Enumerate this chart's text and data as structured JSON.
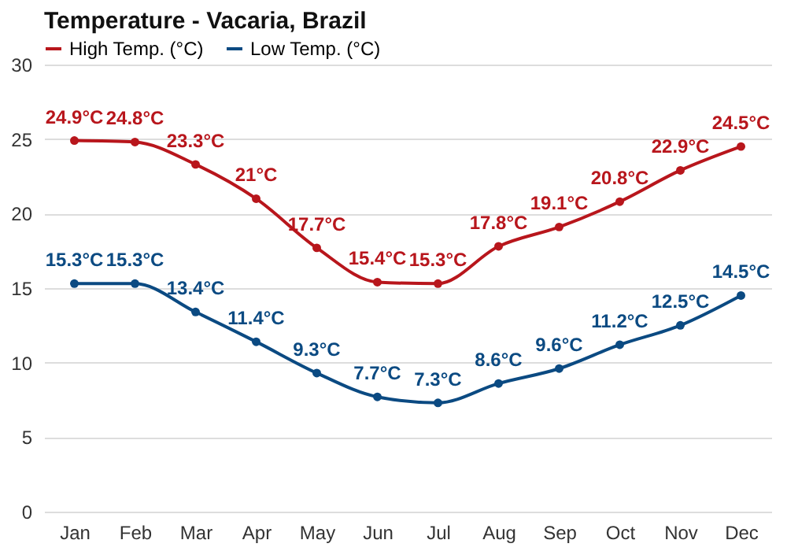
{
  "chart_data": {
    "type": "line",
    "title": "Temperature - Vacaria, Brazil",
    "categories": [
      "Jan",
      "Feb",
      "Mar",
      "Apr",
      "May",
      "Jun",
      "Jul",
      "Aug",
      "Sep",
      "Oct",
      "Nov",
      "Dec"
    ],
    "series": [
      {
        "name": "High Temp. (°C)",
        "color": "#b8161c",
        "values": [
          24.9,
          24.8,
          23.3,
          21,
          17.7,
          15.4,
          15.3,
          17.8,
          19.1,
          20.8,
          22.9,
          24.5
        ],
        "value_labels": [
          "24.9°C",
          "24.8°C",
          "23.3°C",
          "21°C",
          "17.7°C",
          "15.4°C",
          "15.3°C",
          "17.8°C",
          "19.1°C",
          "20.8°C",
          "22.9°C",
          "24.5°C"
        ]
      },
      {
        "name": "Low Temp. (°C)",
        "color": "#0b4a82",
        "values": [
          15.3,
          15.3,
          13.4,
          11.4,
          9.3,
          7.7,
          7.3,
          8.6,
          9.6,
          11.2,
          12.5,
          14.5
        ],
        "value_labels": [
          "15.3°C",
          "15.3°C",
          "13.4°C",
          "11.4°C",
          "9.3°C",
          "7.7°C",
          "7.3°C",
          "8.6°C",
          "9.6°C",
          "11.2°C",
          "12.5°C",
          "14.5°C"
        ]
      }
    ],
    "ylim": [
      0,
      30
    ],
    "yticks": [
      0,
      5,
      10,
      15,
      20,
      25,
      30
    ],
    "grid": "y",
    "legend": "top left",
    "marker": "circle"
  }
}
